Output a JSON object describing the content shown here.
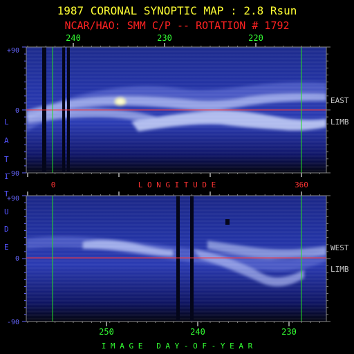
{
  "title": "1987 CORONAL SYNOPTIC MAP : 2.8 Rsun",
  "subtitle": "NCAR/HAO: SMM C/P -- ROTATION # 1792",
  "colors": {
    "background": "#000000",
    "title": "#ffff33",
    "subtitle": "#ff2222",
    "top_ticks": "#33ff33",
    "bottom_ticks": "#33ff33",
    "longitude_label": "#ff3333",
    "latitude_label": "#5555ff",
    "side_label": "#c8c8c8",
    "axis_ticks": "#6666ff",
    "equator_line": "#ff3333",
    "marker_line": "#22dd22",
    "frame": "#888888"
  },
  "axis_labels": {
    "longitude": "L O N G I T U D E",
    "latitude_letters": [
      "L",
      "A",
      "T",
      "I",
      "T",
      "U",
      "D",
      "E"
    ],
    "day_of_year": "I M A G E   D A Y - O F - Y E A R",
    "longitude_ticks": [
      "0",
      "360"
    ],
    "top_ticks": [
      "240",
      "230",
      "220"
    ],
    "bottom_ticks": [
      "250",
      "240",
      "230"
    ],
    "lat_ticks": [
      "+90",
      "0",
      "-90"
    ]
  },
  "side_labels": {
    "east": [
      "EAST",
      "LIMB"
    ],
    "west": [
      "WEST",
      "LIMB"
    ]
  },
  "chart_data": [
    {
      "type": "heatmap",
      "panel": "east limb",
      "x_axis_top": {
        "label": "",
        "ticks": [
          240,
          230,
          220
        ],
        "range": [
          246.5,
          216.5
        ]
      },
      "x_axis_bottom": {
        "label": "L O N G I T U D E",
        "ticks": [
          0,
          360
        ],
        "range": [
          0,
          360
        ]
      },
      "y_axis": {
        "label": "LATITUDE",
        "ticks": [
          90,
          0,
          -90
        ],
        "range": [
          -90,
          90
        ]
      },
      "equator_latitude": 0,
      "marker_longitudes": [
        0,
        360
      ],
      "data_gap_longitudes": [
        -5,
        20
      ]
    },
    {
      "type": "heatmap",
      "panel": "west limb",
      "x_axis_bottom": {
        "label": "I M A G E   D A Y - O F - Y E A R",
        "ticks": [
          250,
          240,
          230
        ],
        "range": [
          256.5,
          226.5
        ]
      },
      "y_axis": {
        "label": "LATITUDE",
        "ticks": [
          90,
          0,
          -90
        ],
        "range": [
          -90,
          90
        ]
      },
      "equator_latitude": 0,
      "marker_longitudes": [
        0,
        360
      ],
      "data_gap_day_of_year": [
        240.8,
        239.4
      ]
    }
  ]
}
